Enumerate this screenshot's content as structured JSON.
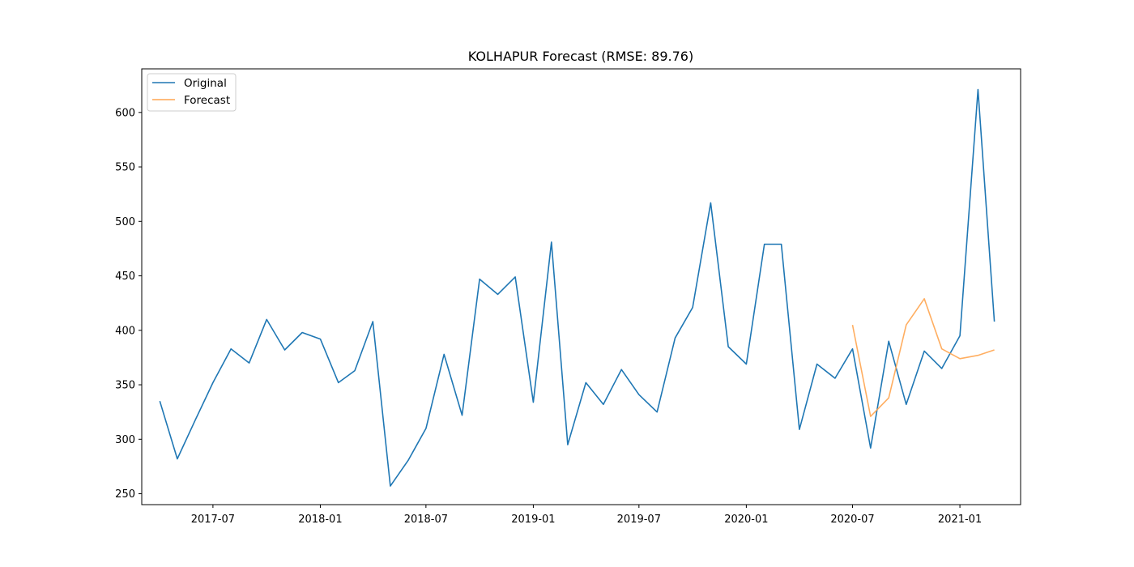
{
  "chart_data": {
    "type": "line",
    "title": "KOLHAPUR Forecast (RMSE: 89.76)",
    "xlabel": "",
    "ylabel": "",
    "xlim": [
      "2017-03-01",
      "2021-04-15"
    ],
    "ylim": [
      240,
      640
    ],
    "x_ticks": [
      "2017-07",
      "2018-01",
      "2018-07",
      "2019-01",
      "2019-07",
      "2020-01",
      "2020-07",
      "2021-01"
    ],
    "y_ticks": [
      250,
      300,
      350,
      400,
      450,
      500,
      550,
      600
    ],
    "grid": false,
    "legend": "top-left",
    "series": [
      {
        "name": "Original",
        "color": "#1f77b4",
        "x": [
          "2017-04",
          "2017-05",
          "2017-06",
          "2017-07",
          "2017-08",
          "2017-09",
          "2017-10",
          "2017-11",
          "2017-12",
          "2018-01",
          "2018-02",
          "2018-03",
          "2018-04",
          "2018-05",
          "2018-06",
          "2018-07",
          "2018-08",
          "2018-09",
          "2018-10",
          "2018-11",
          "2018-12",
          "2019-01",
          "2019-02",
          "2019-03",
          "2019-04",
          "2019-05",
          "2019-06",
          "2019-07",
          "2019-08",
          "2019-09",
          "2019-10",
          "2019-11",
          "2019-12",
          "2020-01",
          "2020-02",
          "2020-03",
          "2020-04",
          "2020-05",
          "2020-06",
          "2020-07",
          "2020-08",
          "2020-09",
          "2020-10",
          "2020-11",
          "2020-12",
          "2021-01",
          "2021-02",
          "2021-03"
        ],
        "values": [
          335,
          282,
          318,
          352,
          383,
          370,
          410,
          382,
          398,
          392,
          352,
          363,
          408,
          257,
          281,
          310,
          378,
          322,
          447,
          433,
          449,
          334,
          481,
          295,
          352,
          332,
          364,
          341,
          325,
          393,
          421,
          517,
          385,
          369,
          479,
          479,
          309,
          369,
          356,
          383,
          292,
          390,
          332,
          381,
          365,
          395,
          621,
          408
        ]
      },
      {
        "name": "Forecast",
        "color": "#ffa550",
        "x": [
          "2020-07",
          "2020-08",
          "2020-09",
          "2020-10",
          "2020-11",
          "2020-12",
          "2021-01",
          "2021-02",
          "2021-03"
        ],
        "values": [
          405,
          321,
          338,
          405,
          429,
          383,
          374,
          377,
          382
        ]
      }
    ]
  }
}
